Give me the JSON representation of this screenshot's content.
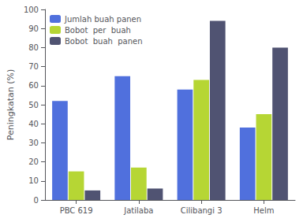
{
  "chart_data": {
    "type": "bar",
    "categories": [
      "PBC 619",
      "Jatilaba",
      "Cilibangi 3",
      "Helm"
    ],
    "series": [
      {
        "name": "Jumlah buah panen",
        "values": [
          52,
          65,
          58,
          38
        ]
      },
      {
        "name": "Bobot  per  buah",
        "values": [
          15,
          17,
          63,
          45
        ]
      },
      {
        "name": "Bobot  buah  panen",
        "values": [
          5,
          6,
          94,
          80
        ]
      }
    ],
    "ylabel": "Peningkatan (%)",
    "ylim": [
      0,
      100
    ],
    "yticks": [
      0,
      10,
      20,
      30,
      40,
      50,
      60,
      70,
      80,
      90,
      100
    ],
    "grid": false,
    "legend": "upper left"
  }
}
